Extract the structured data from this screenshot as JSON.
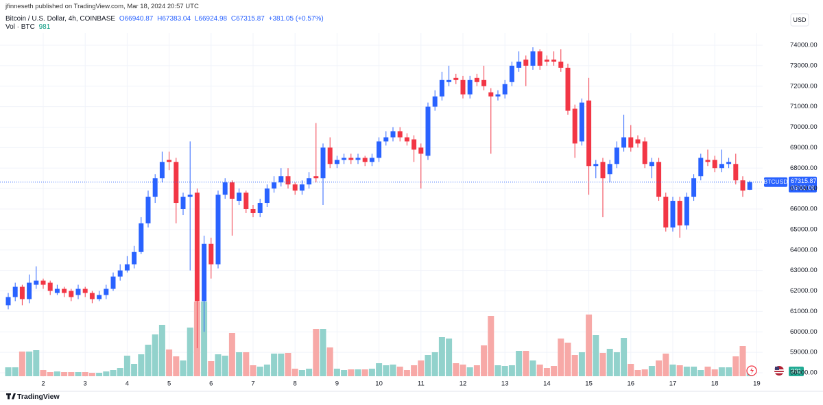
{
  "chart_data": {
    "type": "candlestick",
    "published": "jfinneseth published on TradingView.com, Mar 18, 2024 20:57 UTC",
    "title": "Bitcoin / U.S. Dollar, 4h, COINBASE",
    "ohlc_legend": [
      "O66940.87",
      "H67383.04",
      "L66924.98",
      "C67315.87",
      "+381.05 (+0.57%)"
    ],
    "volume_title": "Vol · BTC",
    "volume_label": "981",
    "currency": "USD",
    "symbol_tag": "BTCUSD",
    "price_tag": "67315.87",
    "countdown": "03:02:09",
    "brand": "TradingView",
    "up_color": "#2962ff",
    "down_color": "#f23645",
    "volume_up_color": "#92d2cc",
    "volume_down_color": "#f7a9a7",
    "grid": true,
    "xtick_labels": [
      "2",
      "3",
      "4",
      "5",
      "6",
      "7",
      "8",
      "9",
      "10",
      "11",
      "12",
      "13",
      "14",
      "15",
      "16",
      "17",
      "18",
      "19"
    ],
    "ylim": [
      58000,
      74000
    ],
    "yticks": [
      {
        "value": 58000,
        "label": "58000.00"
      },
      {
        "value": 59000,
        "label": "59000.00"
      },
      {
        "value": 60000,
        "label": "60000.00"
      },
      {
        "value": 61000,
        "label": "61000.00"
      },
      {
        "value": 62000,
        "label": "62000.00"
      },
      {
        "value": 63000,
        "label": "63000.00"
      },
      {
        "value": 64000,
        "label": "64000.00"
      },
      {
        "value": 65000,
        "label": "65000.00"
      },
      {
        "value": 66000,
        "label": "66000.00"
      },
      {
        "value": 67000,
        "label": "67000.00"
      },
      {
        "value": 68000,
        "label": "68000.00"
      },
      {
        "value": 69000,
        "label": "69000.00"
      },
      {
        "value": 70000,
        "label": "70000.00"
      },
      {
        "value": 71000,
        "label": "71000.00"
      },
      {
        "value": 72000,
        "label": "72000.00"
      },
      {
        "value": 73000,
        "label": "73000.00"
      },
      {
        "value": 74000,
        "label": "74000.00"
      }
    ],
    "open": [
      61300,
      61700,
      62200,
      61600,
      62300,
      62500,
      62400,
      61900,
      62100,
      62000,
      61800,
      62100,
      61900,
      61600,
      61800,
      62100,
      62700,
      63000,
      63300,
      63900,
      65300,
      66600,
      67500,
      68400,
      68300,
      66000,
      66600,
      66800,
      61500,
      64300,
      63300,
      66700,
      67300,
      66400,
      66800,
      66000,
      65800,
      66300,
      67000,
      67300,
      67600,
      67200,
      66900,
      67200,
      67600,
      67500,
      69000,
      68200,
      68400,
      68500,
      68400,
      68500,
      68300,
      68500,
      69300,
      69500,
      69800,
      69500,
      69400,
      69000,
      68600,
      71000,
      71500,
      72200,
      72400,
      72300,
      71600,
      72400,
      72300,
      71700,
      71500,
      71600,
      72200,
      72900,
      73300,
      73000,
      73700,
      73300,
      73300,
      73200,
      72900,
      70900,
      69300,
      71300,
      68100,
      68300,
      67700,
      68200,
      69000,
      69500,
      69400,
      69300,
      68100,
      68300,
      66600,
      65100,
      66400,
      65200,
      66600,
      67600,
      68400,
      68400,
      68000,
      68200,
      68200,
      67400,
      66940.87
    ],
    "high": [
      61900,
      62400,
      62300,
      62800,
      63200,
      62600,
      62500,
      62300,
      62200,
      62100,
      62300,
      62200,
      62000,
      62000,
      62300,
      62900,
      63300,
      63700,
      64200,
      65600,
      66900,
      67700,
      68800,
      68800,
      68500,
      66800,
      69300,
      67000,
      64700,
      64600,
      66900,
      67500,
      67400,
      67000,
      66900,
      66200,
      66500,
      67200,
      67600,
      68000,
      68000,
      67300,
      67400,
      67800,
      70200,
      69200,
      69500,
      68600,
      68700,
      68700,
      68700,
      68600,
      68700,
      69500,
      69800,
      70000,
      70000,
      69700,
      69600,
      69200,
      71200,
      71800,
      72700,
      73000,
      72600,
      72500,
      72500,
      72600,
      73000,
      71900,
      71800,
      72300,
      73200,
      73700,
      73500,
      73900,
      73800,
      73500,
      73700,
      73800,
      73100,
      71100,
      71400,
      72400,
      68400,
      68500,
      68400,
      69300,
      70600,
      70100,
      69600,
      69500,
      68500,
      68500,
      66800,
      66600,
      66600,
      66800,
      67700,
      68700,
      68900,
      68600,
      68900,
      68500,
      68700,
      67600,
      67383.04
    ],
    "low": [
      61100,
      61500,
      61300,
      61400,
      62100,
      62100,
      61800,
      61800,
      61700,
      61500,
      61600,
      61700,
      61400,
      61500,
      61600,
      62000,
      62500,
      62900,
      63100,
      63800,
      65100,
      66300,
      67300,
      67900,
      65300,
      65700,
      63000,
      59200,
      60000,
      62600,
      63100,
      66500,
      64700,
      66200,
      65800,
      65600,
      65600,
      66100,
      66800,
      67100,
      67000,
      66700,
      66700,
      67000,
      67300,
      66200,
      68000,
      68000,
      68200,
      68200,
      68200,
      68100,
      68100,
      68300,
      69100,
      69300,
      69300,
      69100,
      68300,
      67000,
      68400,
      70800,
      71300,
      72000,
      72100,
      71400,
      71400,
      72000,
      71800,
      68700,
      71300,
      71400,
      72000,
      72700,
      72000,
      72800,
      72800,
      73000,
      73000,
      72700,
      70600,
      68500,
      69100,
      66700,
      67500,
      65600,
      67300,
      68000,
      68800,
      68800,
      69000,
      68000,
      67500,
      66400,
      64900,
      64900,
      64600,
      65000,
      66400,
      67400,
      68100,
      67800,
      67800,
      68000,
      67200,
      66600,
      66924.98
    ],
    "close": [
      61700,
      62200,
      61600,
      62400,
      62500,
      62300,
      62000,
      62100,
      61900,
      61700,
      62100,
      61900,
      61600,
      61800,
      62100,
      62700,
      63000,
      63300,
      63900,
      65300,
      66600,
      67500,
      68300,
      68300,
      66300,
      66600,
      66700,
      61500,
      64300,
      63300,
      66700,
      67300,
      66500,
      66800,
      66000,
      65800,
      66300,
      67000,
      67300,
      67600,
      67200,
      66900,
      67200,
      67500,
      67500,
      69000,
      68200,
      68400,
      68500,
      68400,
      68500,
      68300,
      68500,
      69300,
      69500,
      69800,
      69500,
      69300,
      68900,
      68700,
      71000,
      71500,
      72300,
      72300,
      72300,
      71600,
      72300,
      72200,
      72000,
      71500,
      71600,
      72100,
      73000,
      73200,
      73000,
      73700,
      73000,
      73200,
      73200,
      72900,
      70800,
      69200,
      71200,
      68100,
      68200,
      67500,
      68200,
      69000,
      69500,
      69000,
      69200,
      68200,
      68300,
      66600,
      65100,
      66400,
      65200,
      66600,
      67500,
      68500,
      68300,
      68000,
      68200,
      68300,
      67400,
      66900,
      67315.87
    ],
    "volume": [
      1820,
      1820,
      5040,
      5040,
      5320,
      1260,
      840,
      980,
      840,
      840,
      840,
      840,
      700,
      700,
      980,
      1260,
      1680,
      4200,
      2520,
      4480,
      6440,
      8540,
      10500,
      5460,
      4060,
      3220,
      9940,
      15260,
      15260,
      3080,
      4480,
      4200,
      8820,
      4900,
      4900,
      2240,
      1960,
      2380,
      4620,
      4620,
      4760,
      1540,
      1260,
      1540,
      9660,
      9660,
      5880,
      1540,
      1260,
      1400,
      1400,
      1400,
      1540,
      2660,
      2240,
      2380,
      1960,
      1260,
      2240,
      3220,
      4340,
      4900,
      7980,
      7700,
      2660,
      2380,
      1820,
      2240,
      6300,
      12320,
      2240,
      2100,
      2240,
      5180,
      5180,
      3220,
      2380,
      1680,
      2100,
      7700,
      6860,
      4340,
      4900,
      12600,
      8400,
      4760,
      5600,
      4900,
      7840,
      2520,
      1260,
      1400,
      2100,
      3220,
      4620,
      2380,
      2240,
      1960,
      1960,
      1260,
      1960,
      1400,
      1820,
      1820,
      4060,
      6160,
      981
    ]
  }
}
